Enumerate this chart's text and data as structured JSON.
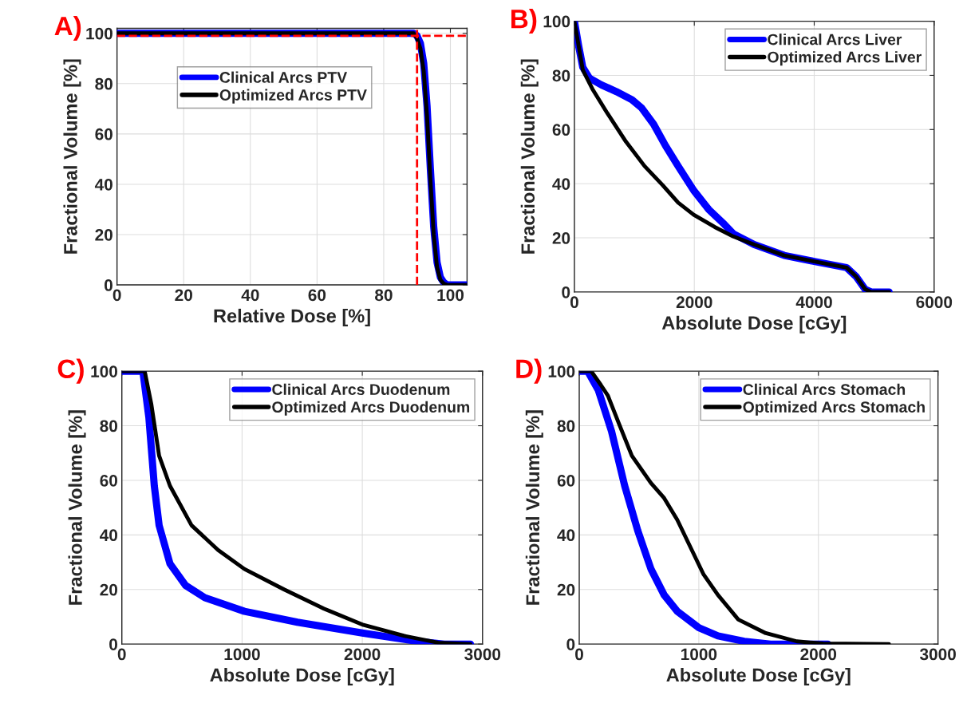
{
  "chart_data": [
    {
      "type": "line",
      "xlabel": "Relative Dose [%]",
      "ylabel": "Fractional Volume [%]",
      "annotations": [
        "A)"
      ],
      "xlim": [
        0,
        105
      ],
      "xticks": [
        0,
        20,
        40,
        60,
        80,
        100
      ],
      "ylim": [
        0,
        102
      ],
      "yticks": [
        0,
        20,
        40,
        60,
        80,
        100
      ],
      "grid": true,
      "legend": "top",
      "line_style": "solid",
      "ref_lines": [
        {
          "axis": "x",
          "value": 90,
          "color": "#ff0000",
          "line_style": "dashed"
        },
        {
          "axis": "y",
          "value": 99,
          "color": "#ff0000",
          "line_style": "dashed"
        }
      ],
      "series": [
        {
          "name": "Clinical Arcs PTV",
          "color": "#0000ff",
          "x": [
            0,
            88,
            89,
            90,
            91,
            92,
            93,
            94,
            95,
            96,
            97,
            98,
            99,
            105
          ],
          "values": [
            100,
            100,
            100,
            99,
            96,
            88,
            71,
            46,
            23,
            9,
            3,
            1,
            0,
            0
          ]
        },
        {
          "name": "Optimized Arcs PTV",
          "color": "#000000",
          "x": [
            0,
            88,
            89,
            90,
            91,
            92,
            93,
            94,
            95,
            96,
            97,
            98,
            99,
            105
          ],
          "values": [
            100,
            100,
            100,
            98,
            94,
            85,
            67,
            42,
            20,
            7,
            2,
            0.5,
            0,
            0
          ]
        }
      ]
    },
    {
      "type": "line",
      "xlabel": "Absolute Dose [cGy]",
      "ylabel": "Fractional Volume [%]",
      "annotations": [
        "B)"
      ],
      "xlim": [
        0,
        6000
      ],
      "xticks": [
        0,
        2000,
        4000,
        6000
      ],
      "ylim": [
        0,
        100
      ],
      "yticks": [
        0,
        20,
        40,
        60,
        80,
        100
      ],
      "grid": true,
      "legend": "top right",
      "line_style": "solid",
      "series": [
        {
          "name": "Clinical Arcs Liver",
          "color": "#0000ff",
          "x": [
            0,
            70,
            140,
            250,
            450,
            700,
            960,
            1120,
            1320,
            1520,
            1730,
            1990,
            2240,
            2500,
            2650,
            3000,
            3500,
            4000,
            4540,
            4700,
            4850,
            4950,
            5250
          ],
          "values": [
            100,
            91,
            83,
            79,
            76.5,
            74,
            71,
            68,
            62,
            54,
            46.5,
            37.5,
            30.5,
            25,
            21.5,
            17.5,
            13.5,
            11.3,
            9,
            5.7,
            1,
            0,
            0
          ]
        },
        {
          "name": "Optimized Arcs Liver",
          "color": "#000000",
          "x": [
            0,
            70,
            140,
            300,
            550,
            860,
            1170,
            1470,
            1730,
            1990,
            2340,
            2650,
            3000,
            3500,
            4000,
            4540,
            4700,
            4850,
            4950,
            5250
          ],
          "values": [
            100,
            91,
            82,
            75,
            66,
            55.5,
            46.5,
            39.5,
            33,
            28.5,
            24,
            20.5,
            17.5,
            13.5,
            11.3,
            9,
            5.7,
            1,
            0,
            0
          ]
        }
      ]
    },
    {
      "type": "line",
      "xlabel": "Absolute Dose [cGy]",
      "ylabel": "Fractional Volume [%]",
      "annotations": [
        "C)"
      ],
      "xlim": [
        0,
        3000
      ],
      "xticks": [
        0,
        1000,
        2000,
        3000
      ],
      "ylim": [
        0,
        100
      ],
      "yticks": [
        0,
        20,
        40,
        60,
        80,
        100
      ],
      "grid": true,
      "legend": "top right",
      "line_style": "solid",
      "series": [
        {
          "name": "Clinical Arcs Duodenum",
          "color": "#0000ff",
          "x": [
            0,
            175,
            225,
            270,
            310,
            400,
            530,
            690,
            1020,
            1460,
            2010,
            2460,
            2680,
            2900
          ],
          "values": [
            100,
            100,
            83,
            58,
            43.5,
            29.5,
            21.5,
            17,
            12,
            8,
            4,
            1,
            0,
            0
          ]
        },
        {
          "name": "Optimized Arcs Duodenum",
          "color": "#000000",
          "x": [
            0,
            190,
            245,
            310,
            400,
            580,
            800,
            1020,
            1350,
            1680,
            2010,
            2350,
            2630,
            2900
          ],
          "values": [
            100,
            100,
            88,
            69,
            58,
            43.5,
            34.5,
            27.5,
            20,
            13,
            7,
            3,
            0.5,
            0
          ]
        }
      ]
    },
    {
      "type": "line",
      "xlabel": "Absolute Dose [cGy]",
      "ylabel": "Fractional Volume [%]",
      "annotations": [
        "D)"
      ],
      "xlim": [
        0,
        3000
      ],
      "xticks": [
        0,
        1000,
        2000,
        3000
      ],
      "ylim": [
        0,
        100
      ],
      "yticks": [
        0,
        20,
        40,
        60,
        80,
        100
      ],
      "grid": true,
      "legend": "top right",
      "line_style": "solid",
      "series": [
        {
          "name": "Clinical Arcs Stomach",
          "color": "#0000ff",
          "x": [
            0,
            70,
            160,
            270,
            380,
            490,
            600,
            710,
            820,
            1000,
            1160,
            1380,
            1600,
            2080
          ],
          "values": [
            100,
            100,
            93,
            78,
            58,
            41.5,
            27.5,
            18,
            12,
            6,
            3,
            1,
            0,
            0
          ]
        },
        {
          "name": "Optimized Arcs Stomach",
          "color": "#000000",
          "x": [
            0,
            100,
            180,
            240,
            330,
            440,
            600,
            710,
            820,
            930,
            1040,
            1160,
            1330,
            1560,
            1820,
            2040,
            2590
          ],
          "values": [
            100,
            100,
            95,
            91,
            81,
            69,
            59,
            53.5,
            45.5,
            35.5,
            25.5,
            18,
            9,
            4,
            1,
            0.2,
            0
          ]
        }
      ]
    }
  ]
}
